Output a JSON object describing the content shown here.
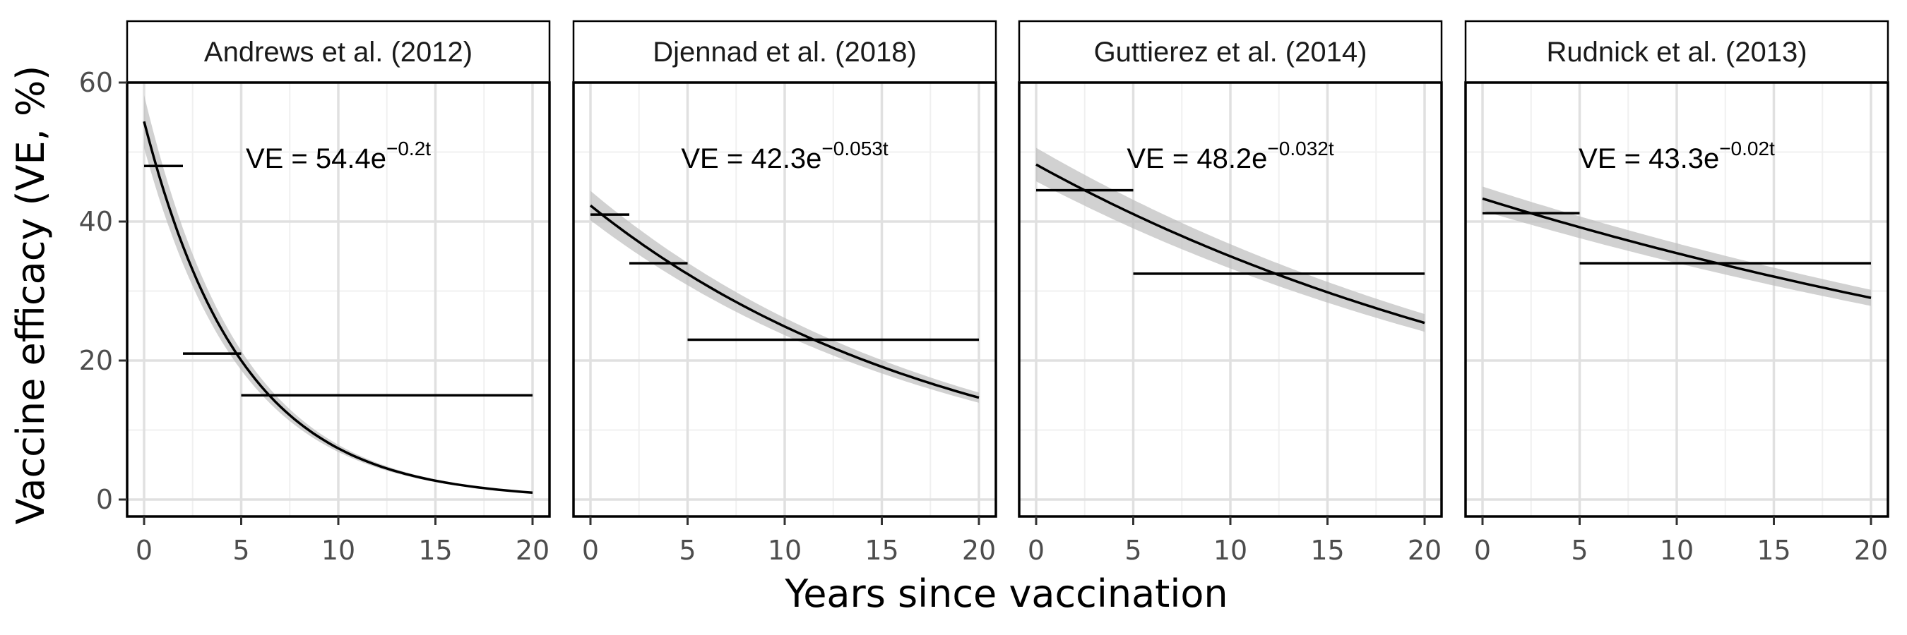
{
  "chart_data": {
    "type": "line",
    "xlabel": "Years since vaccination",
    "ylabel": "Vaccine efficacy (VE, %)",
    "xlim": [
      0,
      20
    ],
    "ylim": [
      0,
      60
    ],
    "x_ticks": [
      "0",
      "5",
      "10",
      "15",
      "20"
    ],
    "y_ticks": [
      "0",
      "20",
      "40",
      "60"
    ],
    "grid": true,
    "colors": {
      "panel_border": "#000000",
      "grid_major": "#e0e0e0",
      "grid_minor": "#f0f0f0",
      "strip_fill": "#ffffff",
      "line": "#000000",
      "ribbon": "#bdbdbd"
    },
    "panels": [
      {
        "title": "Andrews et al. (2012)",
        "equation": {
          "prefix": "VE = 54.4e",
          "exponent": "−0.2t"
        },
        "model": {
          "a": 54.4,
          "b": 0.2,
          "ribbon_low": 0.93,
          "ribbon_high": 1.07
        },
        "observed": [
          {
            "x0": 0,
            "x1": 2,
            "y": 48
          },
          {
            "x0": 2,
            "x1": 5,
            "y": 21
          },
          {
            "x0": 5,
            "x1": 20,
            "y": 15
          }
        ]
      },
      {
        "title": "Djennad et al. (2018)",
        "equation": {
          "prefix": "VE = 42.3e",
          "exponent": "−0.053t"
        },
        "model": {
          "a": 42.3,
          "b": 0.053,
          "ribbon_low": 0.95,
          "ribbon_high": 1.05
        },
        "observed": [
          {
            "x0": 0,
            "x1": 2,
            "y": 41
          },
          {
            "x0": 2,
            "x1": 5,
            "y": 34
          },
          {
            "x0": 5,
            "x1": 20,
            "y": 23
          }
        ]
      },
      {
        "title": "Guttierez et al. (2014)",
        "equation": {
          "prefix": "VE = 48.2e",
          "exponent": "−0.032t"
        },
        "model": {
          "a": 48.2,
          "b": 0.032,
          "ribbon_low": 0.95,
          "ribbon_high": 1.05
        },
        "observed": [
          {
            "x0": 0,
            "x1": 5,
            "y": 44.5
          },
          {
            "x0": 5,
            "x1": 20,
            "y": 32.5
          }
        ]
      },
      {
        "title": "Rudnick et al. (2013)",
        "equation": {
          "prefix": "VE = 43.3e",
          "exponent": "−0.02t"
        },
        "model": {
          "a": 43.3,
          "b": 0.02,
          "ribbon_low": 0.96,
          "ribbon_high": 1.04
        },
        "observed": [
          {
            "x0": 0,
            "x1": 5,
            "y": 41.2
          },
          {
            "x0": 5,
            "x1": 20,
            "y": 34
          }
        ]
      }
    ]
  }
}
